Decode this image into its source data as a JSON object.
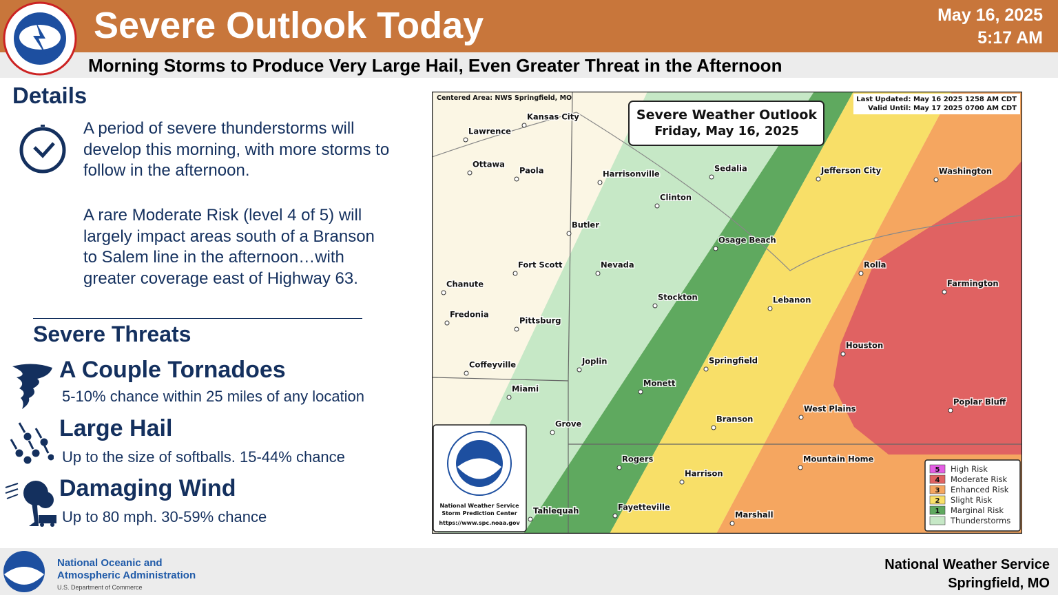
{
  "header": {
    "title": "Severe Outlook Today",
    "date": "May 16, 2025",
    "time": "5:17 AM",
    "subtitle": "Morning Storms to Produce Very Large Hail, Even Greater Threat in the Afternoon"
  },
  "details": {
    "heading": "Details",
    "paragraphs": [
      "A period of severe thunderstorms will develop this morning, with more storms to follow in the afternoon.",
      "A rare Moderate Risk (level 4 of 5) will largely impact areas south of a Branson to Salem line in the afternoon…with greater coverage east of Highway 63."
    ]
  },
  "threats": {
    "heading": "Severe Threats",
    "items": [
      {
        "title": "A Couple Tornadoes",
        "description": "5-10% chance within 25 miles of any location"
      },
      {
        "title": "Large Hail",
        "description": "Up to the size of softballs. 15-44% chance"
      },
      {
        "title": "Damaging Wind",
        "description": "Up to 80 mph. 30-59% chance"
      }
    ]
  },
  "map": {
    "centered_area": "Centered Area: NWS Springfield, MO",
    "last_updated": "Last Updated: May 16 2025 1258 AM CDT",
    "valid_until": "Valid Until: May 17 2025 0700 AM CDT",
    "title": "Severe Weather Outlook",
    "subtitle": "Friday, May 16, 2025",
    "cities": [
      "Kansas City",
      "Lawrence",
      "Ottawa",
      "Paola",
      "Harrisonville",
      "Sedalia",
      "Jefferson City",
      "Washington",
      "Clinton",
      "Butler",
      "Osage Beach",
      "Fort Scott",
      "Nevada",
      "Rolla",
      "Farmington",
      "Chanute",
      "Stockton",
      "Lebanon",
      "Fredonia",
      "Pittsburg",
      "Houston",
      "Springfield",
      "Joplin",
      "Coffeyville",
      "Monett",
      "Miami",
      "West Plains",
      "Poplar Bluff",
      "Branson",
      "Grove",
      "Rogers",
      "Mountain Home",
      "Harrison",
      "Fayetteville",
      "Tahlequah",
      "Marshall"
    ],
    "legend": [
      {
        "level": 5,
        "label": "High Risk"
      },
      {
        "level": 4,
        "label": "Moderate Risk"
      },
      {
        "level": 3,
        "label": "Enhanced Risk"
      },
      {
        "level": 2,
        "label": "Slight Risk"
      },
      {
        "level": 1,
        "label": "Marginal Risk"
      },
      {
        "level": null,
        "label": "Thunderstorms"
      }
    ],
    "noaa_caption": [
      "National Weather Service",
      "Storm Prediction Center",
      "https://www.spc.noaa.gov"
    ]
  },
  "footer": {
    "org_line1": "National Oceanic and",
    "org_line2": "Atmospheric Administration",
    "org_line3": "U.S. Department of Commerce",
    "office": "National Weather Service",
    "location": "Springfield, MO"
  }
}
